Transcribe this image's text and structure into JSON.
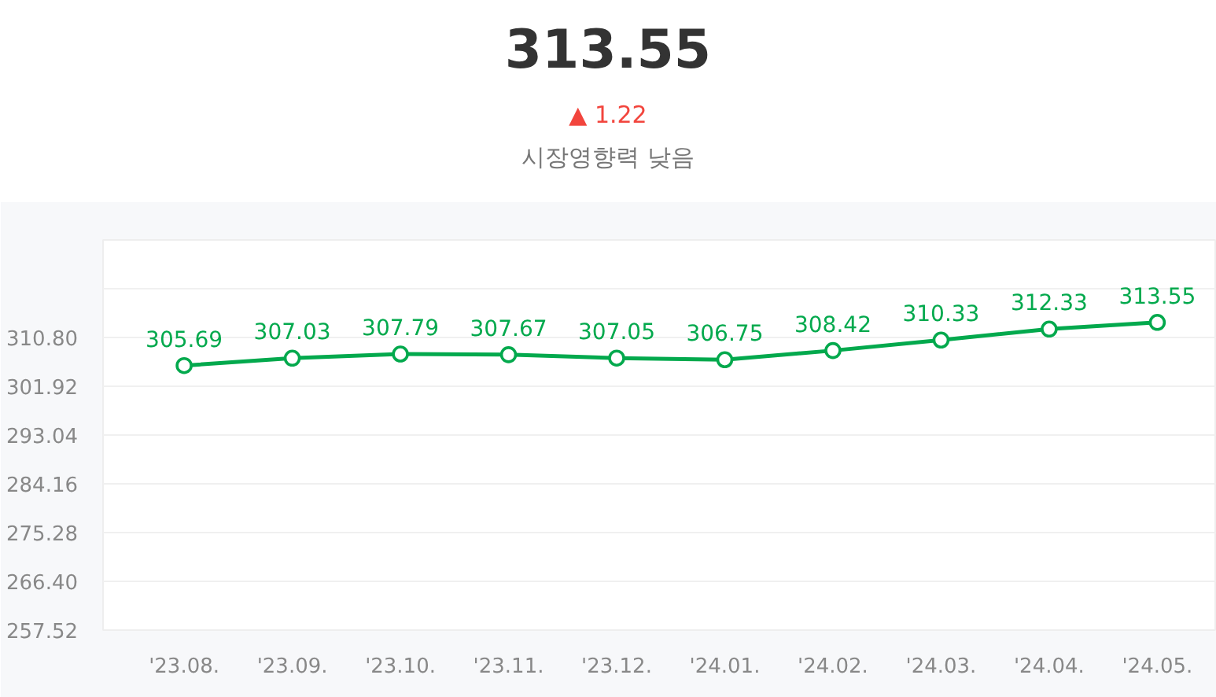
{
  "chart_data": {
    "type": "line",
    "title": "313.55",
    "subtitle": "▲ 1.22",
    "annotations": [
      "시장영향력 낮음"
    ],
    "categories": [
      "'23.08.",
      "'23.09.",
      "'23.10.",
      "'23.11.",
      "'23.12.",
      "'24.01.",
      "'24.02.",
      "'24.03.",
      "'24.04.",
      "'24.05."
    ],
    "series": [
      {
        "color": "#03a94d",
        "values": [
          305.69,
          307.03,
          307.79,
          307.67,
          307.05,
          306.75,
          308.42,
          310.33,
          312.33,
          313.55
        ]
      }
    ],
    "ylim": [
      257.52,
      328.56
    ],
    "yticks": [
      "257.52",
      "266.40",
      "275.28",
      "284.16",
      "293.04",
      "301.92",
      "310.80",
      {
        "value": 319.68,
        "label": null
      }
    ],
    "grid": "y",
    "marker": "circle",
    "line_style": "solid",
    "data_labels": true
  }
}
